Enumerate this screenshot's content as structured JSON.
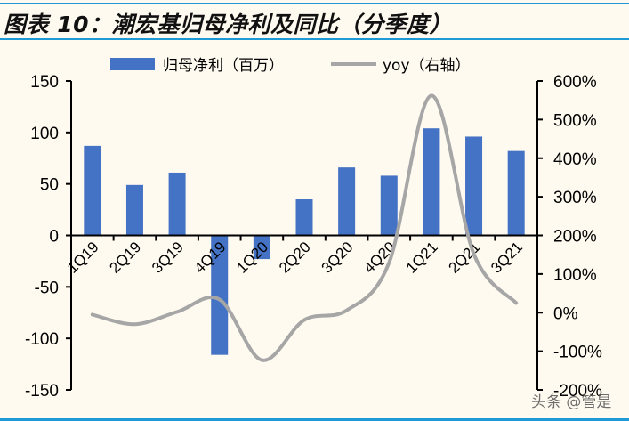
{
  "title": "图表 10：潮宏基归母净利及同比（分季度）",
  "watermark": "头条 @管是",
  "colors": {
    "bar": "#4472c4",
    "line": "#a6a6a6",
    "rule": "#1e9bd7",
    "background": "#fffaf0"
  },
  "chart_data": {
    "type": "bar+line",
    "title": "潮宏基归母净利及同比（分季度）",
    "categories": [
      "1Q19",
      "2Q19",
      "3Q19",
      "4Q19",
      "1Q20",
      "2Q20",
      "3Q20",
      "4Q20",
      "1Q21",
      "2Q21",
      "3Q21"
    ],
    "series": [
      {
        "name": "归母净利（百万）",
        "type": "bar",
        "axis": "left",
        "values": [
          87,
          49,
          61,
          -116,
          -23,
          35,
          66,
          58,
          104,
          96,
          82
        ]
      },
      {
        "name": "yoy（右轴）",
        "type": "line",
        "axis": "right",
        "unit": "%",
        "values": [
          -5,
          -30,
          2,
          34,
          -123,
          -19,
          6,
          129,
          562,
          152,
          25
        ]
      }
    ],
    "left_axis": {
      "ylim": [
        -150,
        150
      ],
      "ticks": [
        "150",
        "100",
        "50",
        "0",
        "-50",
        "-100",
        "-150"
      ]
    },
    "right_axis": {
      "ylim": [
        -200,
        600
      ],
      "ticks": [
        "600%",
        "500%",
        "400%",
        "300%",
        "200%",
        "100%",
        "0%",
        "-100%",
        "-200%"
      ]
    },
    "legend": {
      "position": "top",
      "items": [
        {
          "label": "归母净利（百万）",
          "kind": "bar"
        },
        {
          "label": "yoy（右轴）",
          "kind": "line"
        }
      ]
    },
    "grid": false
  }
}
